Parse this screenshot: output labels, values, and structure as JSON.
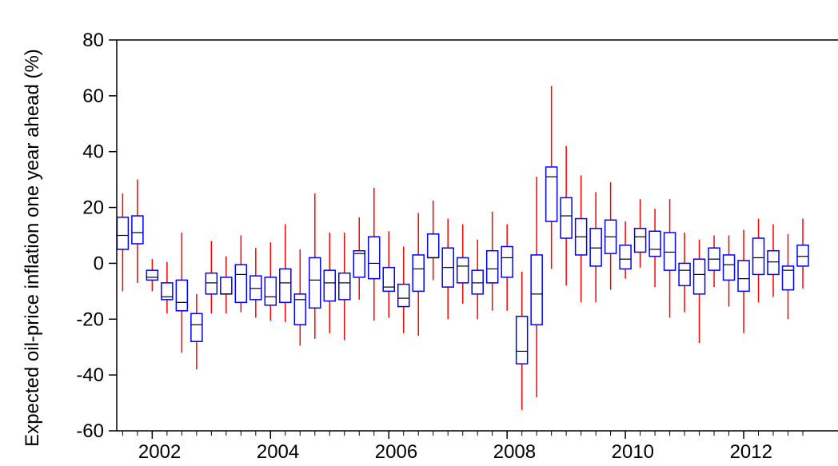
{
  "chart_data": {
    "type": "boxplot",
    "title": "",
    "xlabel": "",
    "ylabel": "Expected oil-price inflation one year ahead (%)",
    "ylim": [
      -60,
      80
    ],
    "xlim": [
      2001.4,
      2013.0
    ],
    "y_ticks": [
      -60,
      -40,
      -20,
      0,
      20,
      40,
      60,
      80
    ],
    "x_ticks": [
      2002,
      2004,
      2006,
      2008,
      2010,
      2012
    ],
    "y_tick_labels": [
      "-60",
      "-40",
      "-20",
      "0",
      "20",
      "40",
      "60",
      "80"
    ],
    "x_tick_labels": [
      "2002",
      "2004",
      "2006",
      "2008",
      "2010",
      "2012"
    ],
    "grid": false,
    "colors": {
      "box": "#0000ff",
      "whisker": "#ff0000",
      "median": "#000000",
      "axis": "#000000"
    },
    "boxes": [
      {
        "x": 2001.5,
        "whisker_low": -10,
        "q1": 5,
        "median": 10,
        "q3": 16.5,
        "whisker_high": 25
      },
      {
        "x": 2001.75,
        "whisker_low": -7,
        "q1": 7,
        "median": 11,
        "q3": 17,
        "whisker_high": 30
      },
      {
        "x": 2002.0,
        "whisker_low": -10,
        "q1": -6,
        "median": -5,
        "q3": -2.5,
        "whisker_high": 1.5
      },
      {
        "x": 2002.25,
        "whisker_low": -18,
        "q1": -13,
        "median": -12,
        "q3": -7,
        "whisker_high": 0.5
      },
      {
        "x": 2002.5,
        "whisker_low": -32,
        "q1": -17,
        "median": -14,
        "q3": -6,
        "whisker_high": 11
      },
      {
        "x": 2002.75,
        "whisker_low": -38,
        "q1": -28,
        "median": -22,
        "q3": -18,
        "whisker_high": -11
      },
      {
        "x": 2003.0,
        "whisker_low": -18,
        "q1": -11,
        "median": -7,
        "q3": -3.5,
        "whisker_high": 8
      },
      {
        "x": 2003.25,
        "whisker_low": -18,
        "q1": -11,
        "median": -11,
        "q3": -5,
        "whisker_high": 2.5
      },
      {
        "x": 2003.5,
        "whisker_low": -17.5,
        "q1": -14,
        "median": -4,
        "q3": -0.5,
        "whisker_high": 10
      },
      {
        "x": 2003.75,
        "whisker_low": -19.5,
        "q1": -13,
        "median": -9,
        "q3": -4.5,
        "whisker_high": 5.5
      },
      {
        "x": 2004.0,
        "whisker_low": -20.5,
        "q1": -15,
        "median": -12,
        "q3": -5,
        "whisker_high": 7.5
      },
      {
        "x": 2004.25,
        "whisker_low": -21,
        "q1": -14,
        "median": -7,
        "q3": -2,
        "whisker_high": 14
      },
      {
        "x": 2004.5,
        "whisker_low": -29.5,
        "q1": -22,
        "median": -13,
        "q3": -11,
        "whisker_high": 5
      },
      {
        "x": 2004.75,
        "whisker_low": -27,
        "q1": -16,
        "median": -6,
        "q3": 2,
        "whisker_high": 25
      },
      {
        "x": 2005.0,
        "whisker_low": -25,
        "q1": -13.5,
        "median": -7,
        "q3": -2.5,
        "whisker_high": 11
      },
      {
        "x": 2005.25,
        "whisker_low": -27.5,
        "q1": -13,
        "median": -7,
        "q3": -3.5,
        "whisker_high": 11
      },
      {
        "x": 2005.5,
        "whisker_low": -13,
        "q1": -5,
        "median": 3.5,
        "q3": 4.5,
        "whisker_high": 16.5
      },
      {
        "x": 2005.75,
        "whisker_low": -20.5,
        "q1": -5.5,
        "median": 0,
        "q3": 9.5,
        "whisker_high": 27
      },
      {
        "x": 2006.0,
        "whisker_low": -19.5,
        "q1": -10,
        "median": -8.5,
        "q3": -1.5,
        "whisker_high": 11.5
      },
      {
        "x": 2006.25,
        "whisker_low": -25,
        "q1": -15.5,
        "median": -12.5,
        "q3": -7.5,
        "whisker_high": 6
      },
      {
        "x": 2006.5,
        "whisker_low": -26,
        "q1": -10,
        "median": -2,
        "q3": 3,
        "whisker_high": 18
      },
      {
        "x": 2006.75,
        "whisker_low": -6,
        "q1": 2,
        "median": 2,
        "q3": 10.5,
        "whisker_high": 22.5
      },
      {
        "x": 2007.0,
        "whisker_low": -20,
        "q1": -8.5,
        "median": -1.5,
        "q3": 5.5,
        "whisker_high": 16
      },
      {
        "x": 2007.25,
        "whisker_low": -14.5,
        "q1": -7,
        "median": -1,
        "q3": 2,
        "whisker_high": 14
      },
      {
        "x": 2007.5,
        "whisker_low": -20,
        "q1": -11,
        "median": -7,
        "q3": -2.5,
        "whisker_high": 8.5
      },
      {
        "x": 2007.75,
        "whisker_low": -17,
        "q1": -7,
        "median": -2,
        "q3": 4.5,
        "whisker_high": 18.5
      },
      {
        "x": 2008.0,
        "whisker_low": -17,
        "q1": -5,
        "median": 2,
        "q3": 6,
        "whisker_high": 14
      },
      {
        "x": 2008.25,
        "whisker_low": -52.5,
        "q1": -36,
        "median": -31.5,
        "q3": -19,
        "whisker_high": -3
      },
      {
        "x": 2008.5,
        "whisker_low": -48,
        "q1": -22,
        "median": -11,
        "q3": 3,
        "whisker_high": 31
      },
      {
        "x": 2008.75,
        "whisker_low": -2,
        "q1": 15,
        "median": 31,
        "q3": 34.5,
        "whisker_high": 63.5
      },
      {
        "x": 2009.0,
        "whisker_low": -8,
        "q1": 9,
        "median": 17,
        "q3": 23.5,
        "whisker_high": 42
      },
      {
        "x": 2009.25,
        "whisker_low": -14,
        "q1": 3,
        "median": 9.5,
        "q3": 16,
        "whisker_high": 31.5
      },
      {
        "x": 2009.5,
        "whisker_low": -14,
        "q1": -1,
        "median": 5.5,
        "q3": 12.5,
        "whisker_high": 25.5
      },
      {
        "x": 2009.75,
        "whisker_low": -9.5,
        "q1": 3.5,
        "median": 9.5,
        "q3": 15.5,
        "whisker_high": 29
      },
      {
        "x": 2010.0,
        "whisker_low": -5.5,
        "q1": -2,
        "median": 1.5,
        "q3": 6.5,
        "whisker_high": 15
      },
      {
        "x": 2010.25,
        "whisker_low": -1.5,
        "q1": 4,
        "median": 9.5,
        "q3": 12.5,
        "whisker_high": 23
      },
      {
        "x": 2010.5,
        "whisker_low": -8.5,
        "q1": 2.5,
        "median": 5,
        "q3": 11.5,
        "whisker_high": 19.5
      },
      {
        "x": 2010.75,
        "whisker_low": -19.5,
        "q1": -2.5,
        "median": 4,
        "q3": 11,
        "whisker_high": 23
      },
      {
        "x": 2011.0,
        "whisker_low": -17.5,
        "q1": -8,
        "median": -2.5,
        "q3": 0,
        "whisker_high": 11
      },
      {
        "x": 2011.25,
        "whisker_low": -28.5,
        "q1": -11,
        "median": -4,
        "q3": 1.5,
        "whisker_high": 8.5
      },
      {
        "x": 2011.5,
        "whisker_low": -8.5,
        "q1": -2.5,
        "median": 1.5,
        "q3": 5.5,
        "whisker_high": 10
      },
      {
        "x": 2011.75,
        "whisker_low": -15.5,
        "q1": -6,
        "median": -0.5,
        "q3": 3,
        "whisker_high": 10
      },
      {
        "x": 2012.0,
        "whisker_low": -25,
        "q1": -10,
        "median": -5.5,
        "q3": 1,
        "whisker_high": 12
      },
      {
        "x": 2012.25,
        "whisker_low": -14,
        "q1": -4,
        "median": 2,
        "q3": 9,
        "whisker_high": 16
      },
      {
        "x": 2012.5,
        "whisker_low": -12,
        "q1": -4,
        "median": 0.5,
        "q3": 4.5,
        "whisker_high": 14
      },
      {
        "x": 2012.75,
        "whisker_low": -20,
        "q1": -9.5,
        "median": -2.5,
        "q3": -1,
        "whisker_high": 10.5
      },
      {
        "x": 2013.0,
        "whisker_low": -9,
        "q1": -1,
        "median": 2.5,
        "q3": 6.5,
        "whisker_high": 16
      }
    ]
  }
}
